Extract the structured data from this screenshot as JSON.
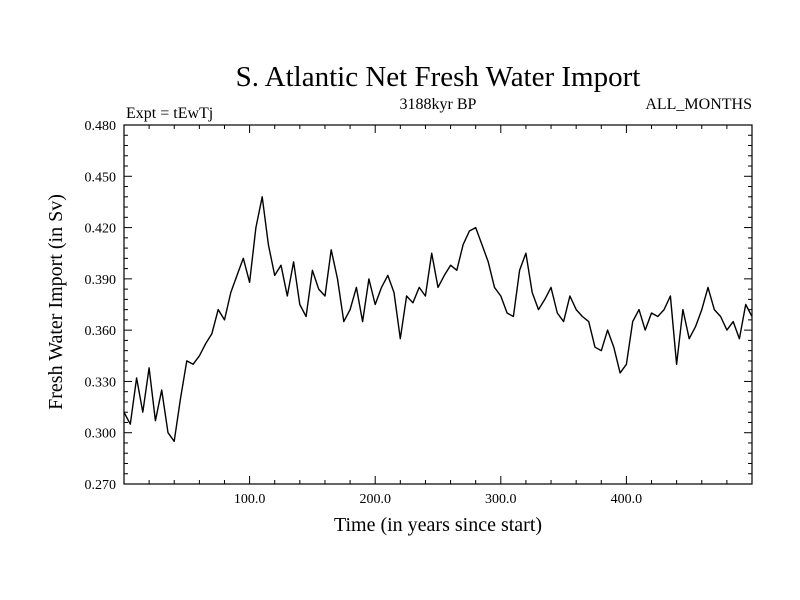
{
  "chart_data": {
    "type": "line",
    "title": "S. Atlantic Net Fresh Water Import",
    "subtitle_left": "Expt = tEwTj",
    "subtitle_center": "3188kyr BP",
    "subtitle_right": "ALL_MONTHS",
    "xlabel": "Time (in years since start)",
    "ylabel": "Fresh Water Import (in Sv)",
    "xlim": [
      0,
      500
    ],
    "ylim": [
      0.27,
      0.48
    ],
    "x_ticks": [
      100,
      200,
      300,
      400
    ],
    "x_tick_labels": [
      "100.0",
      "200.0",
      "300.0",
      "400.0"
    ],
    "y_ticks": [
      0.27,
      0.3,
      0.33,
      0.36,
      0.39,
      0.42,
      0.45,
      0.48
    ],
    "y_tick_labels": [
      "0.270",
      "0.300",
      "0.330",
      "0.360",
      "0.390",
      "0.420",
      "0.450",
      "0.480"
    ],
    "grid": false,
    "series": [
      {
        "name": "Fresh Water Import",
        "color": "#000000",
        "x": [
          0,
          5,
          10,
          15,
          20,
          25,
          30,
          35,
          40,
          45,
          50,
          55,
          60,
          65,
          70,
          75,
          80,
          85,
          90,
          95,
          100,
          105,
          110,
          115,
          120,
          125,
          130,
          135,
          140,
          145,
          150,
          155,
          160,
          165,
          170,
          175,
          180,
          185,
          190,
          195,
          200,
          205,
          210,
          215,
          220,
          225,
          230,
          235,
          240,
          245,
          250,
          255,
          260,
          265,
          270,
          275,
          280,
          285,
          290,
          295,
          300,
          305,
          310,
          315,
          320,
          325,
          330,
          335,
          340,
          345,
          350,
          355,
          360,
          365,
          370,
          375,
          380,
          385,
          390,
          395,
          400,
          405,
          410,
          415,
          420,
          425,
          430,
          435,
          440,
          445,
          450,
          455,
          460,
          465,
          470,
          475,
          480,
          485,
          490,
          495,
          500
        ],
        "values": [
          0.312,
          0.305,
          0.332,
          0.312,
          0.338,
          0.307,
          0.325,
          0.3,
          0.295,
          0.32,
          0.342,
          0.34,
          0.345,
          0.352,
          0.358,
          0.372,
          0.366,
          0.382,
          0.392,
          0.402,
          0.388,
          0.42,
          0.438,
          0.41,
          0.392,
          0.398,
          0.38,
          0.4,
          0.375,
          0.368,
          0.395,
          0.384,
          0.38,
          0.407,
          0.39,
          0.365,
          0.372,
          0.385,
          0.365,
          0.39,
          0.375,
          0.385,
          0.392,
          0.382,
          0.355,
          0.38,
          0.376,
          0.385,
          0.38,
          0.405,
          0.385,
          0.392,
          0.398,
          0.395,
          0.41,
          0.418,
          0.42,
          0.41,
          0.4,
          0.385,
          0.38,
          0.37,
          0.368,
          0.395,
          0.405,
          0.382,
          0.372,
          0.378,
          0.385,
          0.37,
          0.365,
          0.38,
          0.372,
          0.368,
          0.365,
          0.35,
          0.348,
          0.36,
          0.35,
          0.335,
          0.34,
          0.365,
          0.372,
          0.36,
          0.37,
          0.368,
          0.372,
          0.38,
          0.34,
          0.372,
          0.355,
          0.362,
          0.372,
          0.385,
          0.372,
          0.368,
          0.36,
          0.365,
          0.355,
          0.375,
          0.368
        ]
      }
    ]
  }
}
